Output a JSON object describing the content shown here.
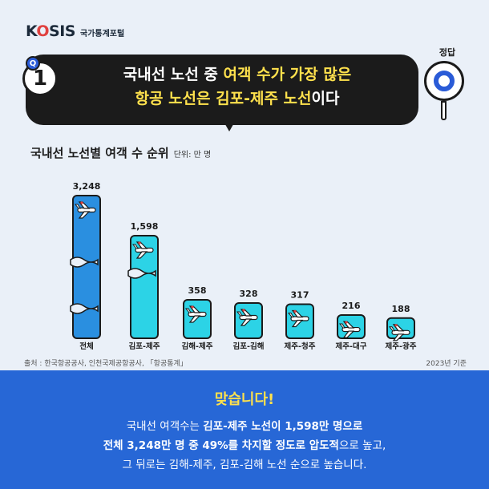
{
  "brand": {
    "mark_pre": "K",
    "mark_o": "O",
    "mark_post": "SIS",
    "sub": "국가통계포털"
  },
  "question": {
    "tag": "Q",
    "number": "1",
    "line1_plain": "국내선 노선 중 ",
    "line1_highlight": "여객 수가 가장 많은",
    "line2_highlight": "항공 노선은 김포-제주 노선",
    "line2_plain": "이다"
  },
  "answer_label": "정답",
  "chart_data": {
    "type": "bar",
    "title": "국내선 노선별 여객 수 순위",
    "unit": "단위: 만 명",
    "categories": [
      "전체",
      "김포-제주",
      "김해-제주",
      "김포-김해",
      "제주-청주",
      "제주-대구",
      "제주-광주"
    ],
    "values": [
      3248,
      1598,
      358,
      328,
      317,
      216,
      188
    ],
    "value_labels": [
      "3,248",
      "1,598",
      "358",
      "328",
      "317",
      "216",
      "188"
    ],
    "broken_axis_bars": [
      0,
      1
    ],
    "colors": {
      "total": "#2a8fe0",
      "route": "#2cd3e6",
      "outline": "#1b1b1b"
    }
  },
  "source": "출처 : 한국항공공사, 인천국제공항공사, 「항공통계」",
  "basis": "2023년 기준",
  "answer": {
    "heading": "맞습니다!",
    "l1a": "국내선 여객수는 ",
    "l1b": "김포-제주 노선이 1,598만 명으로",
    "l2a": "전체 3,248만 명 중 49%를 차지할 정도로 압도적",
    "l2b": "으로 높고,",
    "l3": "그 뒤로는 김해-제주, 김포-김해 노선 순으로 높습니다."
  }
}
